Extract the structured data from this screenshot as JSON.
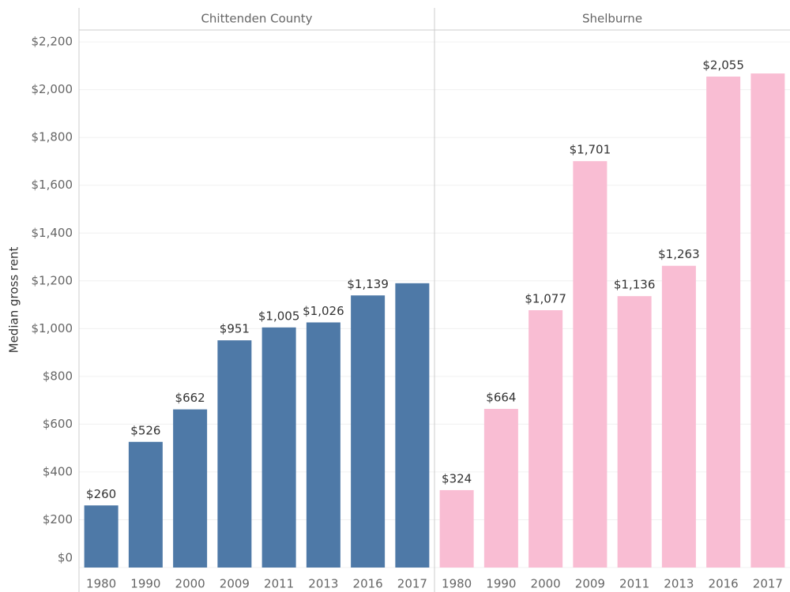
{
  "chart_data": {
    "type": "bar",
    "y_label": "Median gross rent",
    "ylim": [
      0,
      2250
    ],
    "yticks": [
      {
        "value": 0,
        "label": "$0"
      },
      {
        "value": 200,
        "label": "$200"
      },
      {
        "value": 400,
        "label": "$400"
      },
      {
        "value": 600,
        "label": "$600"
      },
      {
        "value": 800,
        "label": "$800"
      },
      {
        "value": 1000,
        "label": "$1,000"
      },
      {
        "value": 1200,
        "label": "$1,200"
      },
      {
        "value": 1400,
        "label": "$1,400"
      },
      {
        "value": 1600,
        "label": "$1,600"
      },
      {
        "value": 1800,
        "label": "$1,800"
      },
      {
        "value": 2000,
        "label": "$2,000"
      },
      {
        "value": 2200,
        "label": "$2,200"
      }
    ],
    "grid": true,
    "panels": [
      {
        "title": "Chittenden County",
        "color": "#4e79a7",
        "categories": [
          "1980",
          "1990",
          "2000",
          "2009",
          "2011",
          "2013",
          "2016",
          "2017"
        ],
        "values": [
          260,
          526,
          662,
          951,
          1005,
          1026,
          1139,
          1190
        ],
        "value_labels": [
          "$260",
          "$526",
          "$662",
          "$951",
          "$1,005",
          "$1,026",
          "$1,139",
          null
        ]
      },
      {
        "title": "Shelburne",
        "color": "#f9bdd3",
        "categories": [
          "1980",
          "1990",
          "2000",
          "2009",
          "2011",
          "2013",
          "2016",
          "2017"
        ],
        "values": [
          324,
          664,
          1077,
          1701,
          1136,
          1263,
          2055,
          2068
        ],
        "value_labels": [
          "$324",
          "$664",
          "$1,077",
          "$1,701",
          "$1,136",
          "$1,263",
          "$2,055",
          null
        ]
      }
    ]
  }
}
